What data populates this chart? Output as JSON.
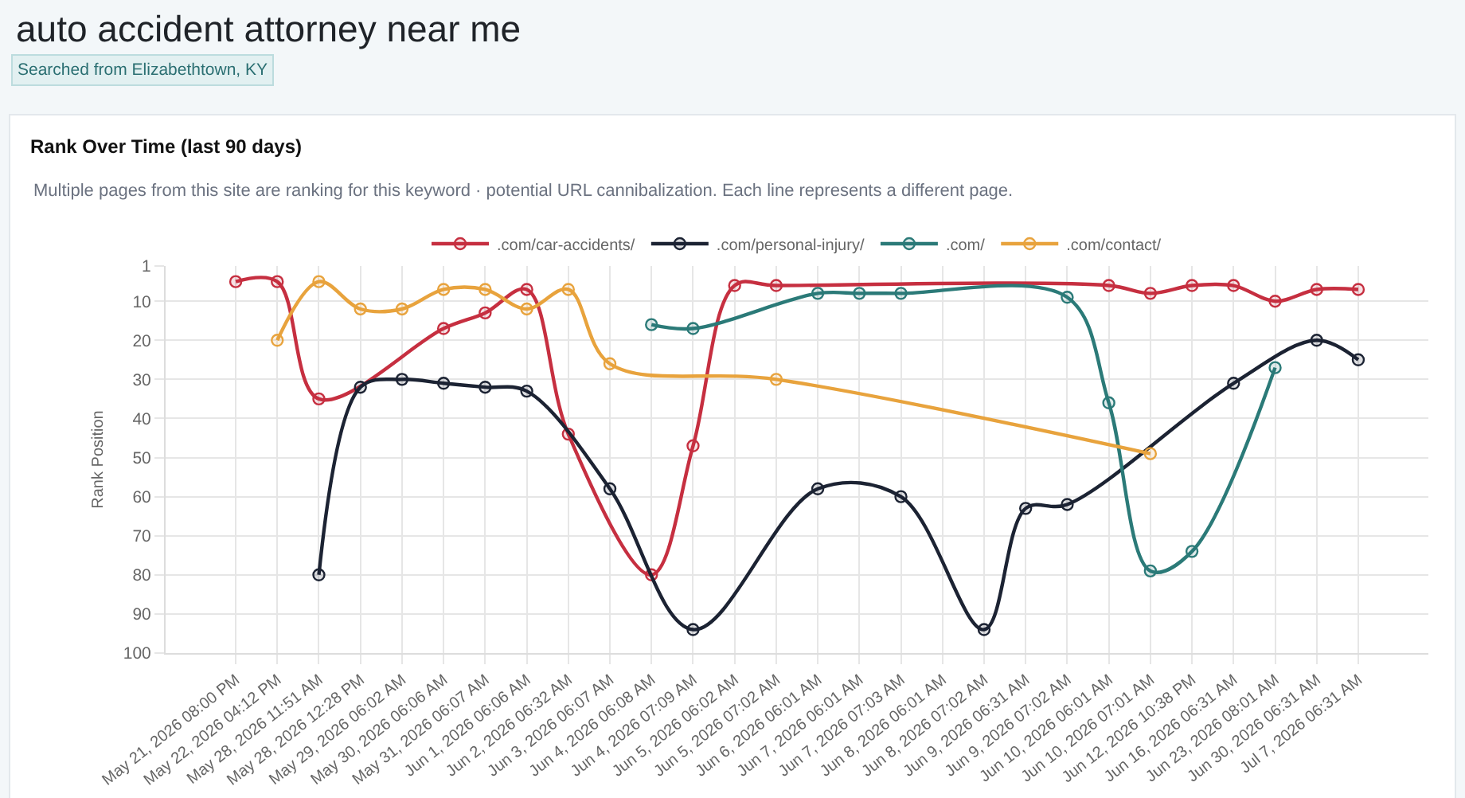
{
  "chart_data": {
    "type": "line",
    "title": "Rank Over Time (last 90 days)",
    "subtitle": "Multiple pages from this site are ranking for this keyword · potential URL cannibalization. Each line represents a different page.",
    "annotations": [
      "auto accident attorney near me",
      "Searched from Elizabethtown, KY"
    ],
    "ylabel": "Rank Position",
    "categories": [
      "May 21, 2026 08:00 PM",
      "May 22, 2026 04:12 PM",
      "May 28, 2026 11:51 AM",
      "May 28, 2026 12:28 PM",
      "May 29, 2026 06:02 AM",
      "May 30, 2026 06:06 AM",
      "May 31, 2026 06:07 AM",
      "Jun 1, 2026 06:06 AM",
      "Jun 2, 2026 06:32 AM",
      "Jun 3, 2026 06:07 AM",
      "Jun 4, 2026 06:08 AM",
      "Jun 4, 2026 07:09 AM",
      "Jun 5, 2026 06:02 AM",
      "Jun 5, 2026 07:02 AM",
      "Jun 6, 2026 06:01 AM",
      "Jun 7, 2026 06:01 AM",
      "Jun 7, 2026 07:03 AM",
      "Jun 8, 2026 06:01 AM",
      "Jun 8, 2026 07:02 AM",
      "Jun 9, 2026 06:31 AM",
      "Jun 9, 2026 07:02 AM",
      "Jun 10, 2026 06:01 AM",
      "Jun 10, 2026 07:01 AM",
      "Jun 12, 2026 10:38 PM",
      "Jun 16, 2026 06:31 AM",
      "Jun 23, 2026 08:01 AM",
      "Jun 30, 2026 06:31 AM",
      "Jul 7, 2026 06:31 AM"
    ],
    "series": [
      {
        "name": ".com/car-accidents/",
        "color": "#c62f40",
        "values": [
          5,
          5,
          35,
          null,
          null,
          17,
          13,
          7,
          44,
          null,
          80,
          47,
          6,
          6,
          null,
          null,
          null,
          null,
          null,
          null,
          null,
          6,
          8,
          6,
          6,
          10,
          7,
          7
        ]
      },
      {
        "name": ".com/personal-injury/",
        "color": "#1c2333",
        "values": [
          null,
          null,
          80,
          32,
          30,
          31,
          32,
          33,
          null,
          58,
          null,
          94,
          null,
          null,
          58,
          null,
          60,
          null,
          94,
          63,
          62,
          null,
          null,
          null,
          31,
          null,
          20,
          25
        ]
      },
      {
        "name": ".com/",
        "color": "#2b7a78",
        "values": [
          null,
          null,
          null,
          null,
          null,
          null,
          null,
          null,
          null,
          null,
          16,
          17,
          null,
          null,
          8,
          8,
          8,
          null,
          null,
          null,
          9,
          36,
          79,
          74,
          null,
          27,
          null,
          null
        ]
      },
      {
        "name": ".com/contact/",
        "color": "#e8a33d",
        "values": [
          null,
          20,
          5,
          12,
          12,
          7,
          7,
          12,
          7,
          26,
          null,
          null,
          null,
          30,
          null,
          null,
          null,
          null,
          null,
          null,
          null,
          null,
          49,
          null,
          null,
          null,
          null,
          null
        ]
      }
    ],
    "ylim": [
      100,
      1
    ],
    "yticks": [
      1,
      10,
      20,
      30,
      40,
      50,
      60,
      70,
      80,
      90,
      100
    ],
    "grid": true,
    "legend": "top",
    "marker": "circle",
    "line_style": "solid"
  }
}
